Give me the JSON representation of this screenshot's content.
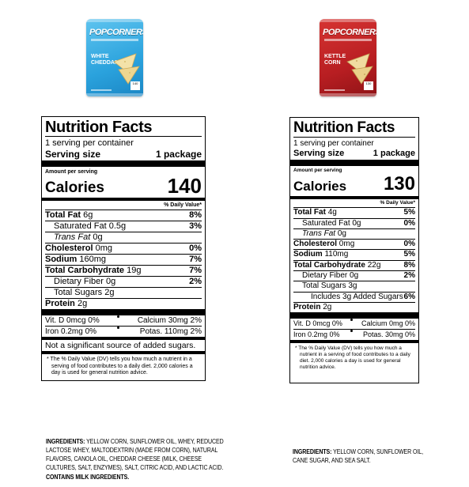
{
  "products": [
    {
      "brand": "POPCORNERS",
      "flavor": "WHITE CHEDDAR",
      "bag_color": "#2aa2dd",
      "badge": "140",
      "nutrition": {
        "title": "Nutrition Facts",
        "servings": "1 serving per container",
        "serving_size_label": "Serving size",
        "serving_size_value": "1 package",
        "amount_per_serving": "Amount per serving",
        "calories_label": "Calories",
        "calories_value": "140",
        "dv_header": "% Daily Value*",
        "rows": [
          {
            "label": "Total Fat",
            "amount": "6g",
            "dv": "8%",
            "bold": true,
            "indent": 0
          },
          {
            "label": "Saturated Fat",
            "amount": "0.5g",
            "dv": "3%",
            "bold": false,
            "indent": 1
          },
          {
            "label": "Trans Fat",
            "amount": "0g",
            "dv": "",
            "bold": false,
            "indent": 1,
            "italic_prefix": true
          },
          {
            "label": "Cholesterol",
            "amount": "0mg",
            "dv": "0%",
            "bold": true,
            "indent": 0
          },
          {
            "label": "Sodium",
            "amount": "160mg",
            "dv": "7%",
            "bold": true,
            "indent": 0
          },
          {
            "label": "Total Carbohydrate",
            "amount": "19g",
            "dv": "7%",
            "bold": true,
            "indent": 0
          },
          {
            "label": "Dietary Fiber",
            "amount": "0g",
            "dv": "2%",
            "bold": false,
            "indent": 1
          },
          {
            "label": "Total Sugars",
            "amount": "2g",
            "dv": "",
            "bold": false,
            "indent": 1
          }
        ],
        "protein_label": "Protein",
        "protein_amount": "2g",
        "vitamins": [
          {
            "left": "Vit. D 0mcg 0%",
            "right": "Calcium 30mg 2%"
          },
          {
            "left": "Iron 0.2mg 0%",
            "right": "Potas. 110mg 2%"
          }
        ],
        "note": "Not a significant source of added sugars.",
        "footnote": "* The % Daily Value (DV) tells you how much a nutrient in a serving of food contributes to a daily diet. 2,000 calories a day is used for general nutrition advice."
      },
      "ingredients_lead": "INGREDIENTS:",
      "ingredients_text": "YELLOW CORN, SUNFLOWER OIL, WHEY, REDUCED LACTOSE WHEY, MALTODEXTRIN (MADE FROM CORN), NATURAL FLAVORS, CANOLA OIL, CHEDDAR CHEESE (MILK, CHEESE CULTURES, SALT, ENZYMES), SALT, CITRIC ACID, AND LACTIC ACID.",
      "contains": "CONTAINS MILK INGREDIENTS."
    },
    {
      "brand": "POPCORNERS",
      "flavor": "KETTLE CORN",
      "bag_color": "#b81e22",
      "badge": "130",
      "nutrition": {
        "title": "Nutrition Facts",
        "servings": "1 serving per container",
        "serving_size_label": "Serving size",
        "serving_size_value": "1 package",
        "amount_per_serving": "Amount per serving",
        "calories_label": "Calories",
        "calories_value": "130",
        "dv_header": "% Daily Value*",
        "rows": [
          {
            "label": "Total Fat",
            "amount": "4g",
            "dv": "5%",
            "bold": true,
            "indent": 0
          },
          {
            "label": "Saturated Fat",
            "amount": "0g",
            "dv": "0%",
            "bold": false,
            "indent": 1
          },
          {
            "label": "Trans Fat",
            "amount": "0g",
            "dv": "",
            "bold": false,
            "indent": 1,
            "italic_prefix": true
          },
          {
            "label": "Cholesterol",
            "amount": "0mg",
            "dv": "0%",
            "bold": true,
            "indent": 0
          },
          {
            "label": "Sodium",
            "amount": "110mg",
            "dv": "5%",
            "bold": true,
            "indent": 0
          },
          {
            "label": "Total Carbohydrate",
            "amount": "22g",
            "dv": "8%",
            "bold": true,
            "indent": 0
          },
          {
            "label": "Dietary Fiber",
            "amount": "0g",
            "dv": "2%",
            "bold": false,
            "indent": 1
          },
          {
            "label": "Total Sugars",
            "amount": "3g",
            "dv": "",
            "bold": false,
            "indent": 1
          },
          {
            "label": "Includes 3g Added Sugars",
            "amount": "",
            "dv": "6%",
            "bold": false,
            "indent": 2
          }
        ],
        "protein_label": "Protein",
        "protein_amount": "2g",
        "vitamins": [
          {
            "left": "Vit. D 0mcg 0%",
            "right": "Calcium 0mg 0%"
          },
          {
            "left": "Iron 0.2mg 0%",
            "right": "Potas. 30mg 0%"
          }
        ],
        "note": "",
        "footnote": "* The % Daily Value (DV) tells you how much a nutrient in a serving of food contributes to a daily diet. 2,000 calories a day is used for general nutrition advice."
      },
      "ingredients_lead": "INGREDIENTS:",
      "ingredients_text": "YELLOW CORN, SUNFLOWER OIL, CANE SUGAR, AND SEA SALT.",
      "contains": ""
    }
  ]
}
